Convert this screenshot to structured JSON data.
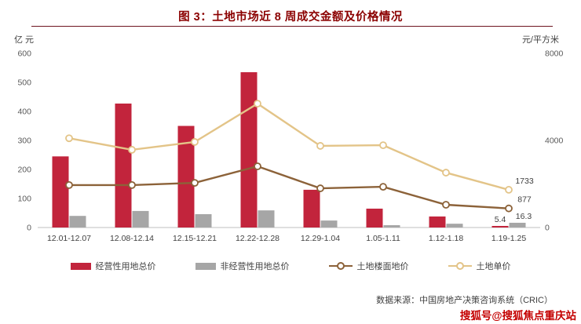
{
  "title": "图 3：土地市场近 8 周成交金额及价格情况",
  "source": "数据来源：中国房地产决策咨询系统（CRIC）",
  "watermark": "搜狐号@搜狐焦点重庆站",
  "chart_data": {
    "type": "bar",
    "combo": true,
    "grid": false,
    "legend_position": "bottom",
    "categories": [
      "12.01-12.07",
      "12.08-12.14",
      "12.15-12.21",
      "12.22-12.28",
      "12.29-1.04",
      "1.05-1.11",
      "1.12-1.18",
      "1.19-1.25"
    ],
    "left_axis": {
      "unit": "亿 元",
      "min": 0,
      "max": 600,
      "ticks": [
        0,
        100,
        200,
        300,
        400,
        500,
        600
      ]
    },
    "right_axis": {
      "unit": "元/平方米",
      "min": 0,
      "max": 8000,
      "ticks": [
        0,
        4000,
        8000
      ]
    },
    "series": [
      {
        "name": "经营性用地总价",
        "type": "bar",
        "axis": "left",
        "color": "#C2243C",
        "values": [
          245,
          427,
          350,
          535,
          130,
          65,
          38,
          5.4
        ],
        "end_label": "5.4"
      },
      {
        "name": "非经营性用地总价",
        "type": "bar",
        "axis": "left",
        "color": "#A6A6A6",
        "values": [
          40,
          57,
          46,
          59,
          24,
          8,
          13,
          16.3
        ],
        "end_label": "16.3"
      },
      {
        "name": "土地楼面地价",
        "type": "line",
        "axis": "right",
        "color": "#8C6239",
        "values": [
          1950,
          1950,
          2050,
          2810,
          1800,
          1870,
          1045,
          877
        ],
        "end_label": "877"
      },
      {
        "name": "土地单价",
        "type": "line",
        "axis": "right",
        "color": "#E3C488",
        "values": [
          4100,
          3570,
          3930,
          5690,
          3750,
          3780,
          2520,
          1733
        ],
        "end_label": "1733"
      }
    ]
  }
}
